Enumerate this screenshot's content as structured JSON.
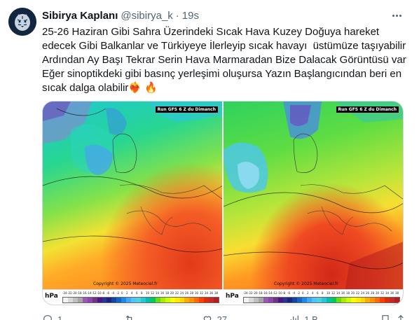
{
  "tweet": {
    "display_name": "Sibirya Kaplanı",
    "handle": "@sibirya_k",
    "separator": "·",
    "time": "19s",
    "text": "25-26 Haziran Gibi Sahra Üzerindeki Sıcak Hava Kuzey Doğuya hareket edecek Gibi Balkanlar ve Türkiyeye İlerleyip sıcak havayı  üstümüze taşıyabilir Ardından Ay Başı Tekrar Serin Hava Marmaradan Bize Dalacak Görüntüsü var Eğer sinoptikdeki gibi basınç yerleşimi oluşursa Yazın Başlangıcından beri en sıcak dalga olabilir❤️‍🔥 🔥"
  },
  "media": {
    "maps": [
      {
        "title": "Run GFS 6 Z du Dimanch",
        "copyright": "Copyright © 2025 Meteociel.fr",
        "unit": "hPa"
      },
      {
        "title": "Run GFS 6 Z du Dimanch",
        "copyright": "Copyright © 2025 Meteociel.fr",
        "unit": "hPa"
      }
    ],
    "legend_ticks": [
      "-24",
      "-22",
      "-20",
      "-18",
      "-16",
      "-14",
      "-12",
      "-10",
      "-8",
      "-6",
      "-4",
      "-2",
      "0",
      "2",
      "4",
      "6",
      "8",
      "10",
      "12",
      "14",
      "16",
      "18",
      "20",
      "22",
      "24",
      "26",
      "28",
      "30",
      "32",
      "34",
      "36",
      "38"
    ],
    "legend_colors": [
      "#f2f2f2",
      "#d9d9d9",
      "#bfbfbf",
      "#a6a6a6",
      "#9b59b6",
      "#8e44ad",
      "#6c3483",
      "#4a148c",
      "#283593",
      "#1a237e",
      "#0d47a1",
      "#1565c0",
      "#1e88e5",
      "#42a5f5",
      "#4fc3f7",
      "#4dd0e1",
      "#26c6da",
      "#00bfa5",
      "#00c853",
      "#64dd17",
      "#aeea00",
      "#c6ff00",
      "#ffff00",
      "#ffea00",
      "#ffd600",
      "#ffab00",
      "#ff9100",
      "#ff6d00",
      "#ff3d00",
      "#dd2c00",
      "#c62828",
      "#b71c1c"
    ]
  },
  "actions": {
    "reply_count": "1",
    "retweet_count": "",
    "like_count": "27",
    "views_count": "1 B"
  }
}
